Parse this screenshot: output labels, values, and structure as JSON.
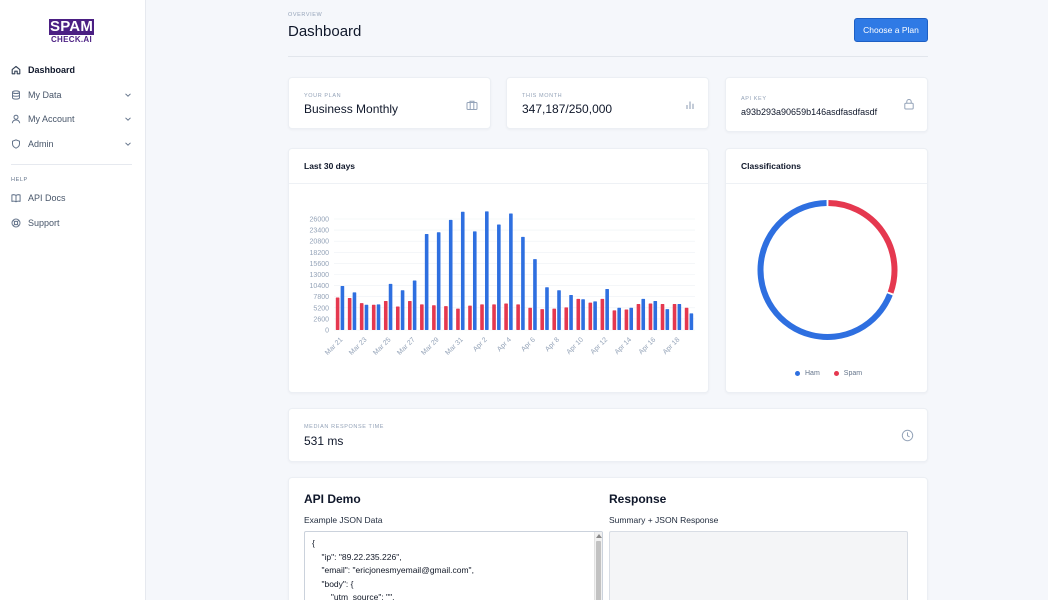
{
  "brand": {
    "logo_top": "SPAM",
    "logo_bottom": "CHECK.AI",
    "color": "#4b1f83"
  },
  "sidebar": {
    "items": [
      {
        "label": "Dashboard",
        "icon": "home-icon",
        "active": true
      },
      {
        "label": "My Data",
        "icon": "database-icon",
        "expandable": true
      },
      {
        "label": "My Account",
        "icon": "user-icon",
        "expandable": true
      },
      {
        "label": "Admin",
        "icon": "shield-icon",
        "expandable": true
      }
    ],
    "help_section": "HELP",
    "help_items": [
      {
        "label": "API Docs",
        "icon": "book-icon"
      },
      {
        "label": "Support",
        "icon": "lifebuoy-icon"
      }
    ]
  },
  "header": {
    "eyebrow": "OVERVIEW",
    "title": "Dashboard",
    "cta_label": "Choose a Plan"
  },
  "stats": {
    "plan": {
      "caption": "YOUR PLAN",
      "value": "Business Monthly",
      "icon": "briefcase-icon"
    },
    "month": {
      "caption": "THIS MONTH",
      "value": "347,187/250,000",
      "icon": "bar-chart-icon"
    },
    "api_key": {
      "caption": "API KEY",
      "value": "a93b293a90659b146asdfasdfasdf",
      "icon": "lock-icon"
    }
  },
  "cards": {
    "last30_title": "Last 30 days",
    "classifications_title": "Classifications"
  },
  "response_time": {
    "caption": "MEDIAN RESPONSE TIME",
    "value": "531 ms",
    "icon": "clock-icon"
  },
  "demo": {
    "title": "API Demo",
    "subtitle": "Example JSON Data",
    "code_lines": [
      "{",
      "    \"ip\": \"89.22.235.226\",",
      "    \"email\": \"ericjonesmyemail@gmail.com\",",
      "    \"body\": {",
      "        \"utm_source\": \"\","
    ],
    "response_title": "Response",
    "response_subtitle": "Summary + JSON Response"
  },
  "colors": {
    "accent": "#2f7ae5",
    "ham": "#2e6fe0",
    "spam": "#e5384f"
  },
  "chart_data": [
    {
      "type": "bar",
      "title": "Last 30 days",
      "categories": [
        "Mar 21",
        "Mar 22",
        "Mar 23",
        "Mar 24",
        "Mar 25",
        "Mar 26",
        "Mar 27",
        "Mar 28",
        "Mar 29",
        "Mar 30",
        "Mar 31",
        "Apr 1",
        "Apr 2",
        "Apr 3",
        "Apr 4",
        "Apr 5",
        "Apr 6",
        "Apr 7",
        "Apr 8",
        "Apr 9",
        "Apr 10",
        "Apr 11",
        "Apr 12",
        "Apr 13",
        "Apr 14",
        "Apr 15",
        "Apr 16",
        "Apr 17",
        "Apr 18",
        "Apr 19"
      ],
      "tick_labels": [
        "Mar 21",
        "Mar 23",
        "Mar 25",
        "Mar 27",
        "Mar 29",
        "Mar 31",
        "Apr 2",
        "Apr 4",
        "Apr 6",
        "Apr 8",
        "Apr 10",
        "Apr 12",
        "Apr 14",
        "Apr 16",
        "Apr 18"
      ],
      "series": [
        {
          "name": "Spam",
          "color": "#e5384f",
          "values": [
            7600,
            7500,
            6300,
            5900,
            6800,
            5500,
            6800,
            6000,
            5800,
            5600,
            5000,
            5700,
            6000,
            6000,
            6200,
            6000,
            5200,
            4900,
            5000,
            5300,
            7300,
            6400,
            7300,
            4600,
            4800,
            6100,
            6200,
            6100,
            6100,
            5200
          ]
        },
        {
          "name": "Ham",
          "color": "#2e6fe0",
          "values": [
            10300,
            8800,
            5900,
            6000,
            10800,
            9300,
            11600,
            22500,
            22900,
            25800,
            27700,
            23100,
            27800,
            24700,
            27300,
            21800,
            16600,
            10000,
            9300,
            8200,
            7200,
            6700,
            9600,
            5200,
            5200,
            7300,
            6800,
            4900,
            6100,
            3900
          ]
        }
      ],
      "yticks": [
        0,
        2600,
        5200,
        7800,
        10400,
        13000,
        15600,
        18200,
        20800,
        23400,
        26000
      ],
      "ylim": [
        0,
        28000
      ],
      "grid": true
    },
    {
      "type": "pie",
      "title": "Classifications",
      "style": "donut",
      "labels": [
        "Ham",
        "Spam"
      ],
      "values": [
        69.3,
        30.7
      ],
      "colors": [
        "#2e6fe0",
        "#e5384f"
      ],
      "legend_position": "bottom"
    }
  ]
}
